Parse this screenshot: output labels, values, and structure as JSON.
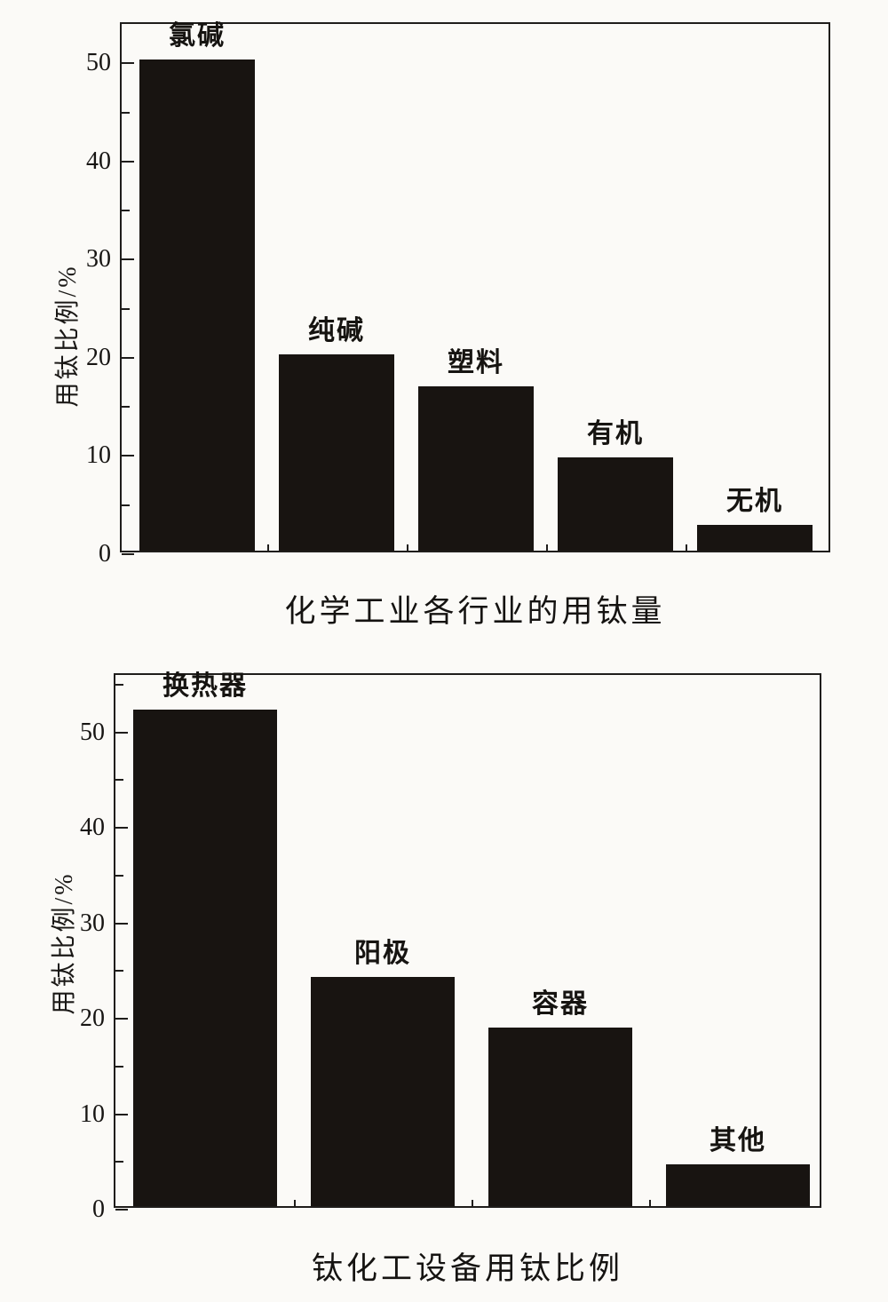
{
  "page": {
    "background": "#fbfaf7",
    "bar_color": "#181411",
    "frame_color": "#1f1d1b"
  },
  "chart_data": [
    {
      "type": "bar",
      "title": "化学工业各行业的用钛量",
      "xlabel": "",
      "ylabel": "用钛比例/%",
      "categories": [
        "氯碱",
        "纯碱",
        "塑料",
        "有机",
        "无机"
      ],
      "values": [
        50,
        20,
        16.7,
        9.5,
        2.6
      ],
      "yticks": [
        0,
        10,
        20,
        30,
        40,
        50
      ],
      "minor_tick_interval": 5,
      "ylim": [
        0,
        54
      ],
      "grid": false,
      "legend": "none",
      "bar_color": "#181411"
    },
    {
      "type": "bar",
      "title": "钛化工设备用钛比例",
      "xlabel": "",
      "ylabel": "用钛比例/%",
      "categories": [
        "换热器",
        "阳极",
        "容器",
        "其他"
      ],
      "values": [
        52,
        24,
        18.7,
        4.4
      ],
      "yticks": [
        0,
        10,
        20,
        30,
        40,
        50
      ],
      "minor_tick_interval": 5,
      "ylim": [
        0,
        56
      ],
      "grid": false,
      "legend": "none",
      "bar_color": "#181411"
    }
  ]
}
